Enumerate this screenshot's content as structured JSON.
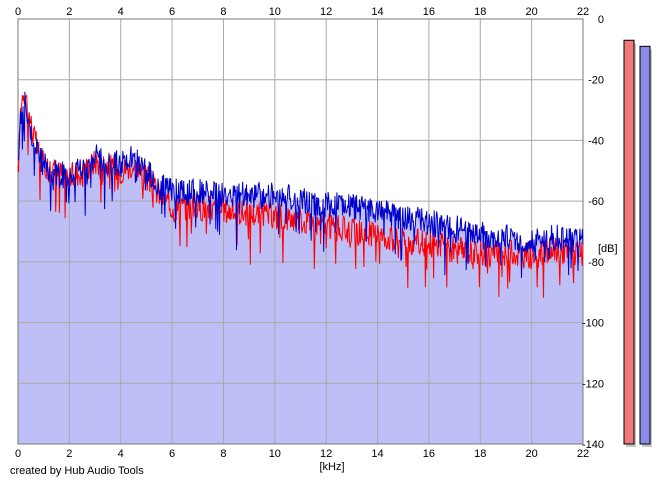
{
  "footer": {
    "credit": "created by Hub Audio Tools"
  },
  "colors": {
    "fill": "#bfbff7",
    "red_trace": "#ff0000",
    "blue_trace": "#0000cc",
    "grid": "#a9a9a9",
    "meter_left": "#f07878",
    "meter_right": "#8a8ae8"
  },
  "chart_data": {
    "type": "line",
    "title": "",
    "xlabel": "[kHz]",
    "ylabel": "[dB]",
    "xlim": [
      0,
      22
    ],
    "ylim": [
      -140,
      0
    ],
    "x_ticks": [
      "0",
      "2",
      "4",
      "6",
      "8",
      "10",
      "12",
      "14",
      "16",
      "18",
      "20",
      "22"
    ],
    "y_ticks": [
      "0",
      "-20",
      "-40",
      "-60",
      "-80",
      "-100",
      "-120",
      "-140"
    ],
    "grid": true,
    "filled_area_under_blue": true,
    "series": [
      {
        "color": "red",
        "x": [
          0,
          0.1,
          0.2,
          0.3,
          0.4,
          0.6,
          0.8,
          1.0,
          1.5,
          2.0,
          2.5,
          3.0,
          3.5,
          4.0,
          4.5,
          5.0,
          5.5,
          6.0,
          7.0,
          8.0,
          9.0,
          10.0,
          11.0,
          12.0,
          13.0,
          14.0,
          15.0,
          16.0,
          17.0,
          18.0,
          19.0,
          20.0,
          21.0,
          22.0
        ],
        "y": [
          -52,
          -30,
          -23,
          -25,
          -30,
          -38,
          -44,
          -48,
          -50,
          -52,
          -50,
          -47,
          -48,
          -50,
          -48,
          -52,
          -58,
          -62,
          -62,
          -63,
          -64,
          -65,
          -66,
          -68,
          -70,
          -71,
          -73,
          -74,
          -76,
          -77,
          -77,
          -78,
          -76,
          -78
        ]
      },
      {
        "color": "blue",
        "x": [
          0,
          0.1,
          0.2,
          0.3,
          0.4,
          0.6,
          0.8,
          1.0,
          1.5,
          2.0,
          2.5,
          3.0,
          3.5,
          4.0,
          4.5,
          5.0,
          5.5,
          6.0,
          7.0,
          8.0,
          9.0,
          10.0,
          11.0,
          12.0,
          13.0,
          14.0,
          15.0,
          16.0,
          17.0,
          18.0,
          19.0,
          20.0,
          21.0,
          22.0
        ],
        "y": [
          -50,
          -32,
          -26,
          -28,
          -33,
          -40,
          -45,
          -48,
          -51,
          -52,
          -49,
          -45,
          -47,
          -48,
          -46,
          -50,
          -55,
          -57,
          -57,
          -58,
          -58,
          -58,
          -60,
          -61,
          -62,
          -63,
          -65,
          -67,
          -69,
          -71,
          -72,
          -73,
          -72,
          -73
        ]
      }
    ],
    "meters": [
      {
        "channel": "left",
        "level_db": -7
      },
      {
        "channel": "right",
        "level_db": -9
      }
    ]
  }
}
